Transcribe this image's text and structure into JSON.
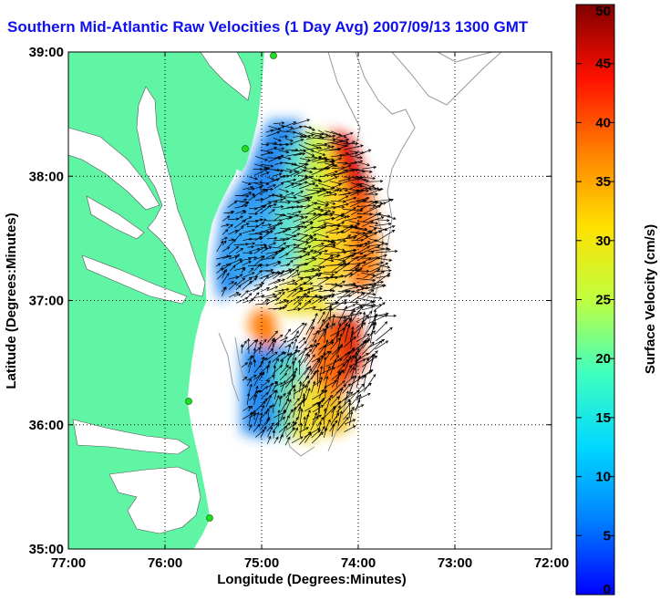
{
  "title": "Southern Mid-Atlantic Raw Velocities (1 Day Avg) 2007/09/13 1300 GMT",
  "x_axis": {
    "label": "Longitude (Degrees:Minutes)",
    "ticks": [
      "77:00",
      "76:00",
      "75:00",
      "74:00",
      "73:00",
      "72:00"
    ],
    "values": [
      -77,
      -76,
      -75,
      -74,
      -73,
      -72
    ]
  },
  "y_axis": {
    "label": "Latitude (Degrees:Minutes)",
    "ticks": [
      "39:00",
      "38:00",
      "37:00",
      "36:00",
      "35:00"
    ],
    "values": [
      39,
      38,
      37,
      36,
      35
    ]
  },
  "colorbar": {
    "label": "Surface Velocity (cm/s)",
    "ticks": [
      "50",
      "45",
      "40",
      "35",
      "30",
      "25",
      "20",
      "15",
      "10",
      "5",
      "0"
    ],
    "min": 0,
    "max": 50,
    "units": "cm/s"
  },
  "grid": "dotted",
  "colors": {
    "land": "#5ff5a5",
    "water": "#ffffff",
    "bathymetry": "#999999",
    "title": "#1010ee",
    "stations": "#22dd22"
  }
}
